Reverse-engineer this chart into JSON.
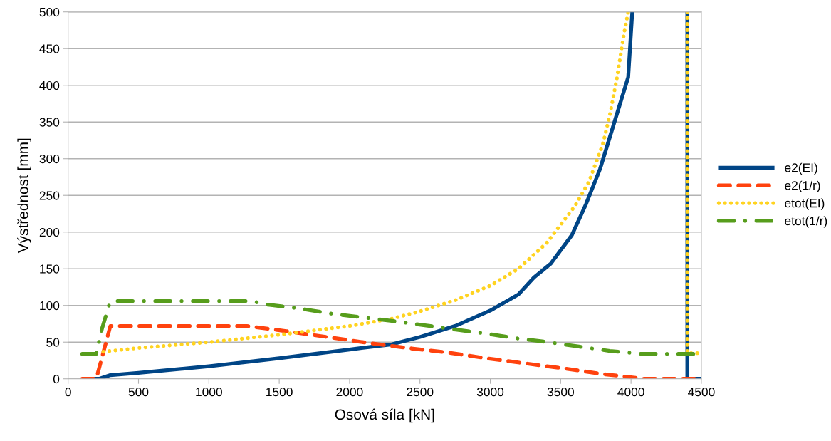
{
  "chart_data": {
    "type": "line",
    "xlabel": "Osová síla [kN]",
    "ylabel": "Výstřednost [mm]",
    "xlim": [
      0,
      4500
    ],
    "ylim": [
      0,
      500
    ],
    "xticks": [
      0,
      500,
      1000,
      1500,
      2000,
      2500,
      3000,
      3500,
      4000,
      4500
    ],
    "yticks": [
      0,
      50,
      100,
      150,
      200,
      250,
      300,
      350,
      400,
      450,
      500
    ],
    "grid": "y",
    "legend": "right",
    "marker": "none",
    "series": [
      {
        "name": "e2(EI)",
        "color": "#004586",
        "line_style": "solid",
        "x": [
          100,
          220,
          300,
          500,
          1000,
          1500,
          2000,
          2300,
          2500,
          2750,
          3000,
          3200,
          3310,
          3430,
          3580,
          3680,
          3780,
          3900,
          3980,
          4009,
          null,
          4400,
          4400,
          4500
        ],
        "values": [
          0,
          0,
          5,
          8,
          17,
          28,
          40,
          47,
          57,
          72,
          93,
          115,
          138,
          157,
          196,
          238,
          286,
          361,
          411,
          500,
          null,
          500,
          0,
          0
        ]
      },
      {
        "name": "e2(1/r)",
        "color": "#ff420e",
        "line_style": "dashed",
        "x": [
          100,
          200,
          300,
          1200,
          1270,
          1550,
          1840,
          2130,
          2415,
          2690,
          2970,
          3250,
          3530,
          3820,
          4100,
          4500
        ],
        "values": [
          0,
          0,
          72,
          72,
          72,
          65,
          57,
          49,
          42,
          36,
          28,
          21,
          14,
          6,
          0,
          0
        ]
      },
      {
        "name": "etot(EI)",
        "color": "#ffd320",
        "line_style": "dotted",
        "x": [
          250,
          500,
          1000,
          1500,
          2000,
          2300,
          2500,
          2750,
          3000,
          3200,
          3400,
          3600,
          3700,
          3800,
          3850,
          3900,
          3950,
          3980,
          null,
          4400,
          4400,
          4500
        ],
        "values": [
          37,
          42,
          50,
          60,
          72,
          82,
          92,
          107,
          127,
          150,
          185,
          235,
          268,
          320,
          360,
          410,
          470,
          500,
          null,
          500,
          35,
          35
        ]
      },
      {
        "name": "etot(1/r)",
        "color": "#579d1c",
        "line_style": "dashdot",
        "x": [
          100,
          200,
          240,
          290,
          310,
          1300,
          1420,
          1640,
          1860,
          2080,
          2300,
          2535,
          2755,
          2955,
          3195,
          3410,
          3630,
          3850,
          4070,
          4500
        ],
        "values": [
          34,
          34,
          68,
          100,
          106,
          106,
          101,
          96,
          89,
          84,
          79,
          73,
          67,
          62,
          55,
          50,
          44,
          38,
          34,
          34
        ]
      }
    ]
  }
}
